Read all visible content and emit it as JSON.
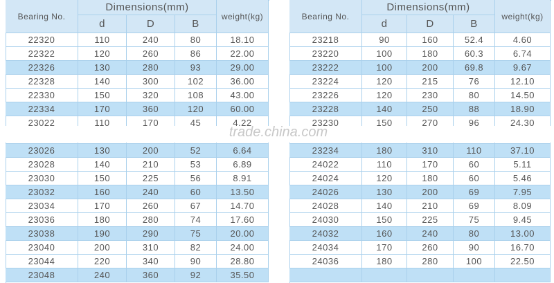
{
  "left_table": {
    "header": {
      "bearing": "Bearing No.",
      "dimensions": "Dimensions(mm)",
      "d": "d",
      "D": "D",
      "B": "B",
      "weight": "weight(kg)"
    },
    "rows": [
      [
        "22320",
        "110",
        "240",
        "80",
        "18.10"
      ],
      [
        "22322",
        "120",
        "260",
        "86",
        "22.00"
      ],
      [
        "22326",
        "130",
        "280",
        "93",
        "29.00"
      ],
      [
        "22328",
        "140",
        "300",
        "102",
        "36.00"
      ],
      [
        "22330",
        "150",
        "320",
        "108",
        "43.00"
      ],
      [
        "22334",
        "170",
        "360",
        "120",
        "60.00"
      ],
      [
        "23022",
        "110",
        "170",
        "45",
        "4.22"
      ],
      [
        "23026",
        "130",
        "200",
        "52",
        "6.64"
      ],
      [
        "23028",
        "140",
        "210",
        "53",
        "6.89"
      ],
      [
        "23030",
        "150",
        "225",
        "56",
        "8.91"
      ],
      [
        "23032",
        "160",
        "240",
        "60",
        "13.50"
      ],
      [
        "23034",
        "170",
        "260",
        "67",
        "14.70"
      ],
      [
        "23036",
        "180",
        "280",
        "74",
        "17.60"
      ],
      [
        "23038",
        "190",
        "290",
        "75",
        "20.00"
      ],
      [
        "23040",
        "200",
        "310",
        "82",
        "24.00"
      ],
      [
        "23044",
        "220",
        "340",
        "90",
        "28.80"
      ],
      [
        "23048",
        "240",
        "360",
        "92",
        "35.50"
      ]
    ]
  },
  "right_table": {
    "header": {
      "bearing": "Bearing No.",
      "dimensions": "Dimensions(mm)",
      "d": "d",
      "D": "D",
      "B": "B",
      "weight": "weight(kg)"
    },
    "rows": [
      [
        "23218",
        "90",
        "160",
        "52.4",
        "4.60"
      ],
      [
        "23220",
        "100",
        "180",
        "60.3",
        "6.74"
      ],
      [
        "23222",
        "100",
        "200",
        "69.8",
        "9.67"
      ],
      [
        "23224",
        "120",
        "215",
        "76",
        "12.10"
      ],
      [
        "23226",
        "120",
        "230",
        "80",
        "14.50"
      ],
      [
        "23228",
        "140",
        "250",
        "88",
        "18.90"
      ],
      [
        "23230",
        "150",
        "270",
        "96",
        "24.30"
      ],
      [
        "23234",
        "180",
        "310",
        "110",
        "37.10"
      ],
      [
        "24022",
        "110",
        "170",
        "60",
        "5.11"
      ],
      [
        "24024",
        "120",
        "180",
        "60",
        "5.46"
      ],
      [
        "24026",
        "130",
        "200",
        "69",
        "7.95"
      ],
      [
        "24028",
        "140",
        "210",
        "69",
        "8.09"
      ],
      [
        "24030",
        "150",
        "225",
        "75",
        "9.45"
      ],
      [
        "24032",
        "160",
        "240",
        "80",
        "13.00"
      ],
      [
        "24034",
        "170",
        "260",
        "90",
        "16.70"
      ],
      [
        "24036",
        "180",
        "280",
        "100",
        "22.50"
      ]
    ]
  },
  "watermark": "trade.china.com"
}
